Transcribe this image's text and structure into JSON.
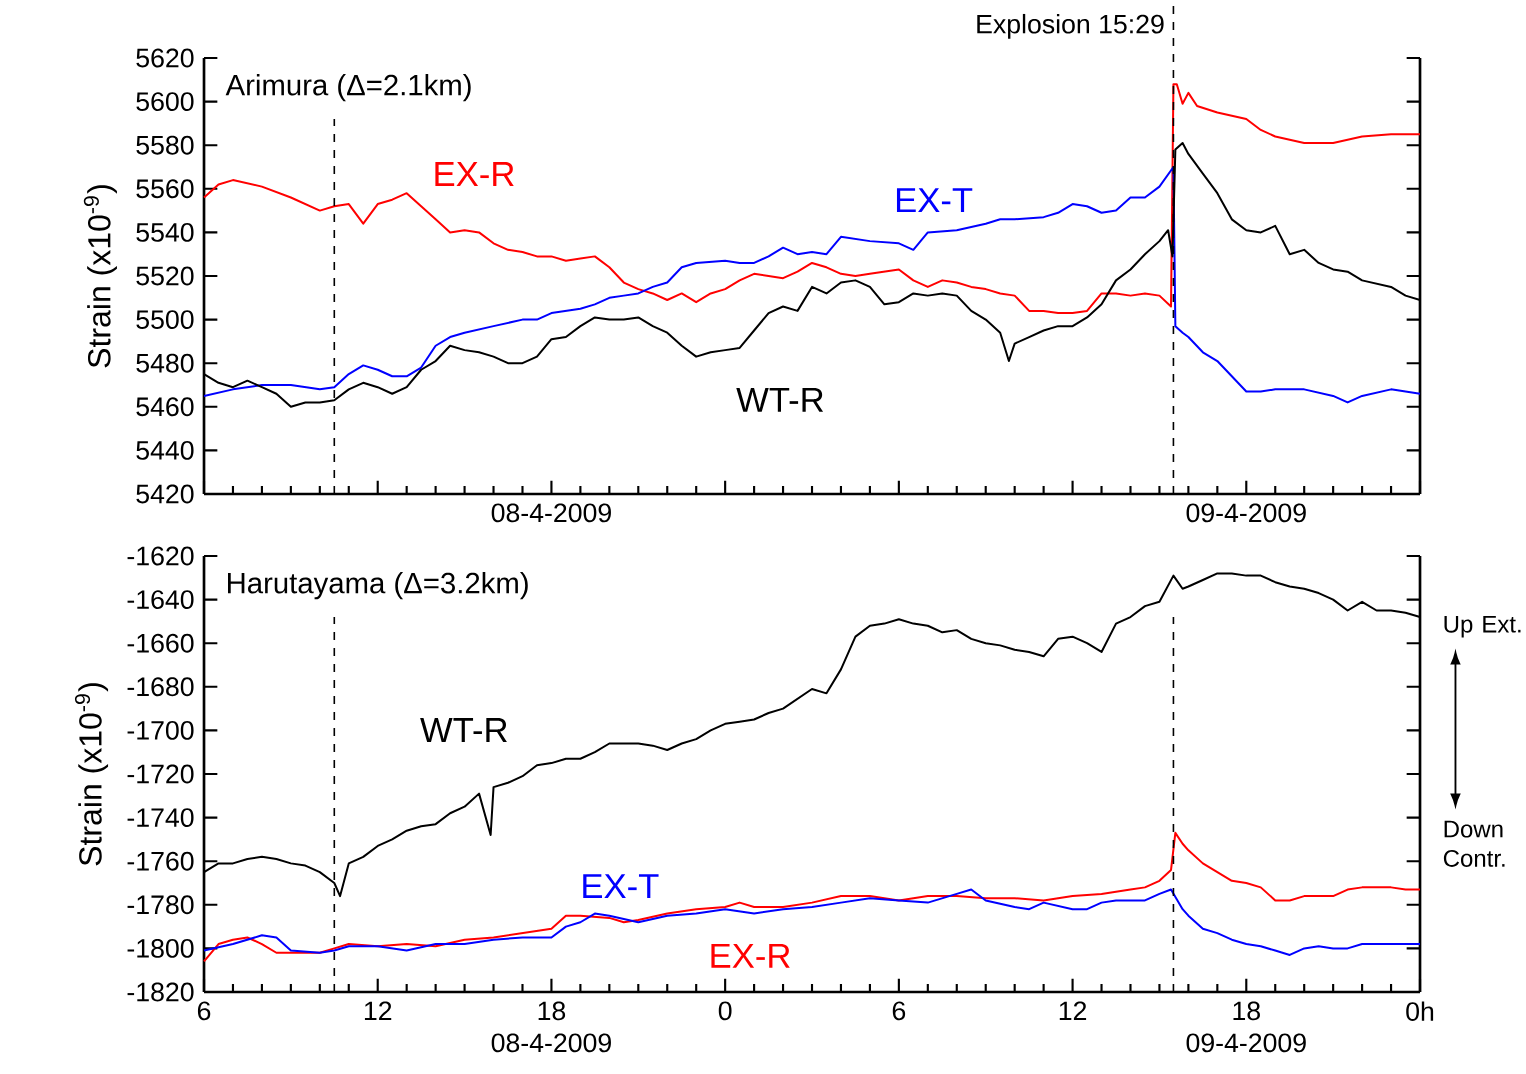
{
  "chart_data": [
    {
      "type": "line",
      "title": "Arimura (Δ=2.1km)",
      "ylabel": "Strain (x10$^{-9}$)",
      "marker": "none",
      "line_style": "solid",
      "xlim": [
        "2009-04-08T06:00",
        "2009-04-10T00:00"
      ],
      "xticks": [
        {
          "value": "2009-04-08T06:00",
          "label": null
        },
        {
          "value": "2009-04-08T12:00",
          "label": null
        },
        {
          "value": "2009-04-08T18:00",
          "label": "08-4-2009"
        },
        {
          "value": "2009-04-09T00:00",
          "label": null
        },
        {
          "value": "2009-04-09T06:00",
          "label": null
        },
        {
          "value": "2009-04-09T12:00",
          "label": null
        },
        {
          "value": "2009-04-09T18:00",
          "label": "09-4-2009"
        },
        {
          "value": "2009-04-10T00:00",
          "label": null
        }
      ],
      "ylim": [
        5420,
        5620
      ],
      "yticks": [
        5420,
        5440,
        5460,
        5480,
        5500,
        5520,
        5540,
        5560,
        5580,
        5600,
        5620
      ],
      "ref_lines": [
        {
          "axis": "x",
          "value": "2009-04-08T10:30",
          "color": "#000000",
          "line_style": "dashed"
        },
        {
          "axis": "x",
          "value": "2009-04-09T15:29",
          "label": "Explosion 15:29",
          "color": "#000000",
          "line_style": "dashed"
        }
      ],
      "series": [
        {
          "name": "EX-R",
          "color": "#ff0000",
          "x": [
            "2009-04-08T06:00",
            "2009-04-08T06:30",
            "2009-04-08T07:00",
            "2009-04-08T08:00",
            "2009-04-08T09:00",
            "2009-04-08T10:00",
            "2009-04-08T10:30",
            "2009-04-08T11:00",
            "2009-04-08T11:30",
            "2009-04-08T12:00",
            "2009-04-08T12:30",
            "2009-04-08T13:00",
            "2009-04-08T13:30",
            "2009-04-08T14:00",
            "2009-04-08T14:30",
            "2009-04-08T15:00",
            "2009-04-08T15:30",
            "2009-04-08T16:00",
            "2009-04-08T16:30",
            "2009-04-08T17:00",
            "2009-04-08T17:30",
            "2009-04-08T18:00",
            "2009-04-08T18:30",
            "2009-04-08T19:00",
            "2009-04-08T19:30",
            "2009-04-08T20:00",
            "2009-04-08T20:30",
            "2009-04-08T21:00",
            "2009-04-08T21:30",
            "2009-04-08T22:00",
            "2009-04-08T22:30",
            "2009-04-08T23:00",
            "2009-04-08T23:30",
            "2009-04-09T00:00",
            "2009-04-09T00:30",
            "2009-04-09T01:00",
            "2009-04-09T01:30",
            "2009-04-09T02:00",
            "2009-04-09T02:30",
            "2009-04-09T03:00",
            "2009-04-09T03:30",
            "2009-04-09T04:00",
            "2009-04-09T04:30",
            "2009-04-09T05:00",
            "2009-04-09T06:00",
            "2009-04-09T06:30",
            "2009-04-09T07:00",
            "2009-04-09T07:30",
            "2009-04-09T08:00",
            "2009-04-09T08:30",
            "2009-04-09T09:00",
            "2009-04-09T09:30",
            "2009-04-09T10:00",
            "2009-04-09T10:30",
            "2009-04-09T11:00",
            "2009-04-09T11:30",
            "2009-04-09T12:00",
            "2009-04-09T12:30",
            "2009-04-09T13:00",
            "2009-04-09T13:30",
            "2009-04-09T14:00",
            "2009-04-09T14:30",
            "2009-04-09T15:00",
            "2009-04-09T15:24",
            "2009-04-09T15:29",
            "2009-04-09T15:36",
            "2009-04-09T15:48",
            "2009-04-09T16:00",
            "2009-04-09T16:18",
            "2009-04-09T17:00",
            "2009-04-09T18:00",
            "2009-04-09T18:30",
            "2009-04-09T19:00",
            "2009-04-09T20:00",
            "2009-04-09T21:00",
            "2009-04-09T22:00",
            "2009-04-09T23:00",
            "2009-04-10T00:00"
          ],
          "values": [
            5556,
            5562,
            5564,
            5561,
            5556,
            5550,
            5552,
            5553,
            5544,
            5553,
            5555,
            5558,
            5552,
            5546,
            5540,
            5541,
            5540,
            5535,
            5532,
            5531,
            5529,
            5529,
            5527,
            5528,
            5529,
            5524,
            5517,
            5514,
            5512,
            5509,
            5512,
            5508,
            5512,
            5514,
            5518,
            5521,
            5520,
            5519,
            5522,
            5526,
            5524,
            5521,
            5520,
            5521,
            5523,
            5518,
            5515,
            5518,
            5517,
            5515,
            5514,
            5512,
            5511,
            5504,
            5504,
            5503,
            5503,
            5504,
            5512,
            5512,
            5511,
            5512,
            5511,
            5506,
            5608,
            5608,
            5599,
            5604,
            5598,
            5595,
            5592,
            5587,
            5584,
            5581,
            5581,
            5584,
            5585,
            5585
          ]
        },
        {
          "name": "EX-T",
          "color": "#0000ff",
          "x": [
            "2009-04-08T06:00",
            "2009-04-08T07:00",
            "2009-04-08T08:00",
            "2009-04-08T09:00",
            "2009-04-08T10:00",
            "2009-04-08T10:30",
            "2009-04-08T11:00",
            "2009-04-08T11:30",
            "2009-04-08T12:00",
            "2009-04-08T12:30",
            "2009-04-08T13:00",
            "2009-04-08T13:30",
            "2009-04-08T14:00",
            "2009-04-08T14:30",
            "2009-04-08T15:00",
            "2009-04-08T16:00",
            "2009-04-08T17:00",
            "2009-04-08T17:30",
            "2009-04-08T18:00",
            "2009-04-08T19:00",
            "2009-04-08T19:30",
            "2009-04-08T20:00",
            "2009-04-08T20:30",
            "2009-04-08T21:00",
            "2009-04-08T21:30",
            "2009-04-08T22:00",
            "2009-04-08T22:30",
            "2009-04-08T23:00",
            "2009-04-09T00:00",
            "2009-04-09T00:30",
            "2009-04-09T01:00",
            "2009-04-09T01:30",
            "2009-04-09T02:00",
            "2009-04-09T02:30",
            "2009-04-09T03:00",
            "2009-04-09T03:30",
            "2009-04-09T04:00",
            "2009-04-09T05:00",
            "2009-04-09T06:00",
            "2009-04-09T06:30",
            "2009-04-09T07:00",
            "2009-04-09T08:00",
            "2009-04-09T09:00",
            "2009-04-09T09:30",
            "2009-04-09T10:00",
            "2009-04-09T11:00",
            "2009-04-09T11:30",
            "2009-04-09T12:00",
            "2009-04-09T12:30",
            "2009-04-09T13:00",
            "2009-04-09T13:30",
            "2009-04-09T14:00",
            "2009-04-09T14:30",
            "2009-04-09T15:00",
            "2009-04-09T15:29",
            "2009-04-09T15:33",
            "2009-04-09T15:48",
            "2009-04-09T16:00",
            "2009-04-09T16:30",
            "2009-04-09T17:00",
            "2009-04-09T17:30",
            "2009-04-09T18:00",
            "2009-04-09T18:30",
            "2009-04-09T19:00",
            "2009-04-09T20:00",
            "2009-04-09T21:00",
            "2009-04-09T21:30",
            "2009-04-09T22:00",
            "2009-04-09T23:00",
            "2009-04-10T00:00"
          ],
          "values": [
            5465,
            5468,
            5470,
            5470,
            5468,
            5469,
            5475,
            5479,
            5477,
            5474,
            5474,
            5478,
            5488,
            5492,
            5494,
            5497,
            5500,
            5500,
            5503,
            5505,
            5507,
            5510,
            5511,
            5512,
            5515,
            5517,
            5524,
            5526,
            5527,
            5526,
            5526,
            5529,
            5533,
            5530,
            5531,
            5530,
            5538,
            5536,
            5535,
            5532,
            5540,
            5541,
            5544,
            5546,
            5546,
            5547,
            5549,
            5553,
            5552,
            5549,
            5550,
            5556,
            5556,
            5561,
            5570,
            5497,
            5494,
            5492,
            5485,
            5481,
            5474,
            5467,
            5467,
            5468,
            5468,
            5465,
            5462,
            5465,
            5468,
            5466
          ]
        },
        {
          "name": "WT-R",
          "color": "#000000",
          "x": [
            "2009-04-08T06:00",
            "2009-04-08T06:30",
            "2009-04-08T07:00",
            "2009-04-08T07:30",
            "2009-04-08T08:00",
            "2009-04-08T08:30",
            "2009-04-08T09:00",
            "2009-04-08T09:30",
            "2009-04-08T10:00",
            "2009-04-08T10:30",
            "2009-04-08T11:00",
            "2009-04-08T11:30",
            "2009-04-08T12:00",
            "2009-04-08T12:30",
            "2009-04-08T13:00",
            "2009-04-08T13:30",
            "2009-04-08T14:00",
            "2009-04-08T14:30",
            "2009-04-08T15:00",
            "2009-04-08T15:30",
            "2009-04-08T16:00",
            "2009-04-08T16:30",
            "2009-04-08T17:00",
            "2009-04-08T17:30",
            "2009-04-08T18:00",
            "2009-04-08T18:30",
            "2009-04-08T19:00",
            "2009-04-08T19:30",
            "2009-04-08T20:00",
            "2009-04-08T20:30",
            "2009-04-08T21:00",
            "2009-04-08T21:30",
            "2009-04-08T22:00",
            "2009-04-08T22:30",
            "2009-04-08T23:00",
            "2009-04-08T23:30",
            "2009-04-09T00:00",
            "2009-04-09T00:30",
            "2009-04-09T01:00",
            "2009-04-09T01:30",
            "2009-04-09T02:00",
            "2009-04-09T02:30",
            "2009-04-09T03:00",
            "2009-04-09T03:30",
            "2009-04-09T04:00",
            "2009-04-09T04:30",
            "2009-04-09T05:00",
            "2009-04-09T05:30",
            "2009-04-09T06:00",
            "2009-04-09T06:30",
            "2009-04-09T07:00",
            "2009-04-09T07:30",
            "2009-04-09T08:00",
            "2009-04-09T08:30",
            "2009-04-09T09:00",
            "2009-04-09T09:30",
            "2009-04-09T09:48",
            "2009-04-09T10:00",
            "2009-04-09T10:30",
            "2009-04-09T11:00",
            "2009-04-09T11:30",
            "2009-04-09T12:00",
            "2009-04-09T12:30",
            "2009-04-09T13:00",
            "2009-04-09T13:30",
            "2009-04-09T14:00",
            "2009-04-09T14:30",
            "2009-04-09T15:00",
            "2009-04-09T15:18",
            "2009-04-09T15:27",
            "2009-04-09T15:33",
            "2009-04-09T15:48",
            "2009-04-09T16:00",
            "2009-04-09T16:30",
            "2009-04-09T17:00",
            "2009-04-09T17:30",
            "2009-04-09T18:00",
            "2009-04-09T18:30",
            "2009-04-09T19:00",
            "2009-04-09T19:30",
            "2009-04-09T20:00",
            "2009-04-09T20:30",
            "2009-04-09T21:00",
            "2009-04-09T21:30",
            "2009-04-09T22:00",
            "2009-04-09T23:00",
            "2009-04-09T23:30",
            "2009-04-10T00:00"
          ],
          "values": [
            5475,
            5471,
            5469,
            5472,
            5469,
            5466,
            5460,
            5462,
            5462,
            5463,
            5468,
            5471,
            5469,
            5466,
            5469,
            5477,
            5481,
            5488,
            5486,
            5485,
            5483,
            5480,
            5480,
            5483,
            5491,
            5492,
            5497,
            5501,
            5500,
            5500,
            5501,
            5497,
            5494,
            5488,
            5483,
            5485,
            5486,
            5487,
            5495,
            5503,
            5506,
            5504,
            5515,
            5512,
            5517,
            5518,
            5515,
            5507,
            5508,
            5512,
            5511,
            5512,
            5511,
            5504,
            5500,
            5494,
            5481,
            5489,
            5492,
            5495,
            5497,
            5497,
            5501,
            5507,
            5518,
            5523,
            5530,
            5536,
            5541,
            5529,
            5578,
            5581,
            5576,
            5567,
            5558,
            5546,
            5541,
            5540,
            5543,
            5530,
            5532,
            5526,
            5523,
            5522,
            5518,
            5515,
            5511,
            5509
          ]
        }
      ]
    },
    {
      "type": "line",
      "title": "Harutayama (Δ=3.2km)",
      "ylabel": "Strain (x10$^{-9}$)",
      "marker": "none",
      "line_style": "solid",
      "annotations": [
        "Up Ext.",
        "Down Contr."
      ],
      "xlim": [
        "2009-04-08T06:00",
        "2009-04-10T00:00"
      ],
      "xticks": [
        {
          "value": "2009-04-08T06:00",
          "label": "6"
        },
        {
          "value": "2009-04-08T12:00",
          "label": "12"
        },
        {
          "value": "2009-04-08T18:00",
          "label": "18 08-4-2009"
        },
        {
          "value": "2009-04-09T00:00",
          "label": "0"
        },
        {
          "value": "2009-04-09T06:00",
          "label": "6"
        },
        {
          "value": "2009-04-09T12:00",
          "label": "12"
        },
        {
          "value": "2009-04-09T18:00",
          "label": "18 09-4-2009"
        },
        {
          "value": "2009-04-10T00:00",
          "label": "0h"
        }
      ],
      "ylim": [
        -1820,
        -1620
      ],
      "yticks": [
        -1820,
        -1800,
        -1780,
        -1760,
        -1740,
        -1720,
        -1700,
        -1680,
        -1660,
        -1640,
        -1620
      ],
      "ref_lines": [
        {
          "axis": "x",
          "value": "2009-04-08T10:30",
          "color": "#000000",
          "line_style": "dashed"
        },
        {
          "axis": "x",
          "value": "2009-04-09T15:29",
          "color": "#000000",
          "line_style": "dashed"
        }
      ],
      "series": [
        {
          "name": "EX-R",
          "color": "#ff0000",
          "x": [
            "2009-04-08T06:00",
            "2009-04-08T06:30",
            "2009-04-08T07:00",
            "2009-04-08T07:30",
            "2009-04-08T08:00",
            "2009-04-08T08:30",
            "2009-04-08T09:00",
            "2009-04-08T10:00",
            "2009-04-08T10:30",
            "2009-04-08T11:00",
            "2009-04-08T12:00",
            "2009-04-08T13:00",
            "2009-04-08T14:00",
            "2009-04-08T15:00",
            "2009-04-08T16:00",
            "2009-04-08T17:00",
            "2009-04-08T18:00",
            "2009-04-08T18:30",
            "2009-04-08T19:00",
            "2009-04-08T20:00",
            "2009-04-08T20:30",
            "2009-04-08T21:00",
            "2009-04-08T22:00",
            "2009-04-08T23:00",
            "2009-04-09T00:00",
            "2009-04-09T00:30",
            "2009-04-09T01:00",
            "2009-04-09T02:00",
            "2009-04-09T03:00",
            "2009-04-09T04:00",
            "2009-04-09T05:00",
            "2009-04-09T06:00",
            "2009-04-09T07:00",
            "2009-04-09T08:00",
            "2009-04-09T09:00",
            "2009-04-09T10:00",
            "2009-04-09T11:00",
            "2009-04-09T12:00",
            "2009-04-09T13:00",
            "2009-04-09T14:00",
            "2009-04-09T14:30",
            "2009-04-09T15:00",
            "2009-04-09T15:24",
            "2009-04-09T15:33",
            "2009-04-09T15:48",
            "2009-04-09T16:00",
            "2009-04-09T16:30",
            "2009-04-09T17:00",
            "2009-04-09T17:30",
            "2009-04-09T18:00",
            "2009-04-09T18:30",
            "2009-04-09T19:00",
            "2009-04-09T19:30",
            "2009-04-09T20:00",
            "2009-04-09T21:00",
            "2009-04-09T21:30",
            "2009-04-09T22:00",
            "2009-04-09T23:00",
            "2009-04-09T23:30",
            "2009-04-10T00:00"
          ],
          "values": [
            -1806,
            -1798,
            -1796,
            -1795,
            -1798,
            -1802,
            -1802,
            -1802,
            -1800,
            -1798,
            -1799,
            -1798,
            -1799,
            -1796,
            -1795,
            -1793,
            -1791,
            -1785,
            -1785,
            -1786,
            -1788,
            -1787,
            -1784,
            -1782,
            -1781,
            -1779,
            -1781,
            -1781,
            -1779,
            -1776,
            -1776,
            -1778,
            -1776,
            -1776,
            -1777,
            -1777,
            -1778,
            -1776,
            -1775,
            -1773,
            -1772,
            -1769,
            -1764,
            -1747,
            -1752,
            -1755,
            -1761,
            -1765,
            -1769,
            -1770,
            -1772,
            -1778,
            -1778,
            -1776,
            -1776,
            -1773,
            -1772,
            -1772,
            -1773,
            -1773
          ]
        },
        {
          "name": "EX-T",
          "color": "#0000ff",
          "x": [
            "2009-04-08T06:00",
            "2009-04-08T07:00",
            "2009-04-08T08:00",
            "2009-04-08T08:30",
            "2009-04-08T09:00",
            "2009-04-08T10:00",
            "2009-04-08T10:30",
            "2009-04-08T11:00",
            "2009-04-08T12:00",
            "2009-04-08T13:00",
            "2009-04-08T14:00",
            "2009-04-08T15:00",
            "2009-04-08T16:00",
            "2009-04-08T17:00",
            "2009-04-08T18:00",
            "2009-04-08T18:30",
            "2009-04-08T19:00",
            "2009-04-08T19:30",
            "2009-04-08T20:00",
            "2009-04-08T21:00",
            "2009-04-08T22:00",
            "2009-04-08T23:00",
            "2009-04-09T00:00",
            "2009-04-09T01:00",
            "2009-04-09T02:00",
            "2009-04-09T03:00",
            "2009-04-09T04:00",
            "2009-04-09T05:00",
            "2009-04-09T06:00",
            "2009-04-09T07:00",
            "2009-04-09T08:00",
            "2009-04-09T08:30",
            "2009-04-09T09:00",
            "2009-04-09T10:00",
            "2009-04-09T10:30",
            "2009-04-09T11:00",
            "2009-04-09T12:00",
            "2009-04-09T12:30",
            "2009-04-09T13:00",
            "2009-04-09T13:30",
            "2009-04-09T14:00",
            "2009-04-09T14:30",
            "2009-04-09T15:00",
            "2009-04-09T15:24",
            "2009-04-09T15:48",
            "2009-04-09T16:00",
            "2009-04-09T16:30",
            "2009-04-09T17:00",
            "2009-04-09T17:30",
            "2009-04-09T18:00",
            "2009-04-09T18:30",
            "2009-04-09T19:00",
            "2009-04-09T19:30",
            "2009-04-09T20:00",
            "2009-04-09T20:30",
            "2009-04-09T21:00",
            "2009-04-09T21:30",
            "2009-04-09T22:00",
            "2009-04-09T23:00",
            "2009-04-10T00:00"
          ],
          "values": [
            -1801,
            -1798,
            -1794,
            -1795,
            -1801,
            -1802,
            -1801,
            -1799,
            -1799,
            -1801,
            -1798,
            -1798,
            -1796,
            -1795,
            -1795,
            -1790,
            -1788,
            -1784,
            -1785,
            -1788,
            -1785,
            -1784,
            -1782,
            -1784,
            -1782,
            -1781,
            -1779,
            -1777,
            -1778,
            -1779,
            -1775,
            -1773,
            -1778,
            -1781,
            -1782,
            -1779,
            -1782,
            -1782,
            -1779,
            -1778,
            -1778,
            -1778,
            -1775,
            -1773,
            -1782,
            -1785,
            -1791,
            -1793,
            -1796,
            -1798,
            -1799,
            -1801,
            -1803,
            -1800,
            -1799,
            -1800,
            -1800,
            -1798,
            -1798,
            -1798
          ]
        },
        {
          "name": "WT-R",
          "color": "#000000",
          "x": [
            "2009-04-08T06:00",
            "2009-04-08T06:30",
            "2009-04-08T07:00",
            "2009-04-08T07:30",
            "2009-04-08T08:00",
            "2009-04-08T08:30",
            "2009-04-08T09:00",
            "2009-04-08T09:30",
            "2009-04-08T10:00",
            "2009-04-08T10:30",
            "2009-04-08T10:42",
            "2009-04-08T11:00",
            "2009-04-08T11:30",
            "2009-04-08T12:00",
            "2009-04-08T12:30",
            "2009-04-08T13:00",
            "2009-04-08T13:30",
            "2009-04-08T14:00",
            "2009-04-08T14:30",
            "2009-04-08T15:00",
            "2009-04-08T15:30",
            "2009-04-08T15:54",
            "2009-04-08T16:00",
            "2009-04-08T16:30",
            "2009-04-08T17:00",
            "2009-04-08T17:30",
            "2009-04-08T18:00",
            "2009-04-08T18:30",
            "2009-04-08T19:00",
            "2009-04-08T19:30",
            "2009-04-08T20:00",
            "2009-04-08T20:30",
            "2009-04-08T21:00",
            "2009-04-08T21:30",
            "2009-04-08T22:00",
            "2009-04-08T22:30",
            "2009-04-08T23:00",
            "2009-04-08T23:30",
            "2009-04-09T00:00",
            "2009-04-09T00:30",
            "2009-04-09T01:00",
            "2009-04-09T01:30",
            "2009-04-09T02:00",
            "2009-04-09T03:00",
            "2009-04-09T03:30",
            "2009-04-09T04:00",
            "2009-04-09T04:30",
            "2009-04-09T05:00",
            "2009-04-09T05:30",
            "2009-04-09T06:00",
            "2009-04-09T06:30",
            "2009-04-09T07:00",
            "2009-04-09T07:30",
            "2009-04-09T08:00",
            "2009-04-09T08:30",
            "2009-04-09T09:00",
            "2009-04-09T09:30",
            "2009-04-09T10:00",
            "2009-04-09T10:30",
            "2009-04-09T11:00",
            "2009-04-09T11:30",
            "2009-04-09T12:00",
            "2009-04-09T12:30",
            "2009-04-09T13:00",
            "2009-04-09T13:30",
            "2009-04-09T14:00",
            "2009-04-09T14:30",
            "2009-04-09T15:00",
            "2009-04-09T15:29",
            "2009-04-09T15:48",
            "2009-04-09T16:00",
            "2009-04-09T16:30",
            "2009-04-09T17:00",
            "2009-04-09T17:30",
            "2009-04-09T18:00",
            "2009-04-09T18:30",
            "2009-04-09T19:00",
            "2009-04-09T19:30",
            "2009-04-09T20:00",
            "2009-04-09T20:30",
            "2009-04-09T21:00",
            "2009-04-09T21:30",
            "2009-04-09T22:00",
            "2009-04-09T22:30",
            "2009-04-09T23:00",
            "2009-04-09T23:30",
            "2009-04-10T00:00"
          ],
          "values": [
            -1765,
            -1761,
            -1761,
            -1759,
            -1758,
            -1759,
            -1761,
            -1762,
            -1765,
            -1770,
            -1776,
            -1761,
            -1758,
            -1753,
            -1750,
            -1746,
            -1744,
            -1743,
            -1738,
            -1735,
            -1729,
            -1748,
            -1726,
            -1724,
            -1721,
            -1716,
            -1715,
            -1713,
            -1713,
            -1710,
            -1706,
            -1706,
            -1706,
            -1707,
            -1709,
            -1706,
            -1704,
            -1700,
            -1697,
            -1696,
            -1695,
            -1692,
            -1690,
            -1681,
            -1683,
            -1672,
            -1657,
            -1652,
            -1651,
            -1649,
            -1651,
            -1652,
            -1655,
            -1654,
            -1658,
            -1660,
            -1661,
            -1663,
            -1664,
            -1666,
            -1658,
            -1657,
            -1660,
            -1664,
            -1651,
            -1648,
            -1643,
            -1641,
            -1629,
            -1635,
            -1634,
            -1631,
            -1628,
            -1628,
            -1629,
            -1629,
            -1632,
            -1634,
            -1635,
            -1637,
            -1640,
            -1645,
            -1641,
            -1645,
            -1645,
            -1646,
            -1648
          ]
        }
      ]
    }
  ]
}
